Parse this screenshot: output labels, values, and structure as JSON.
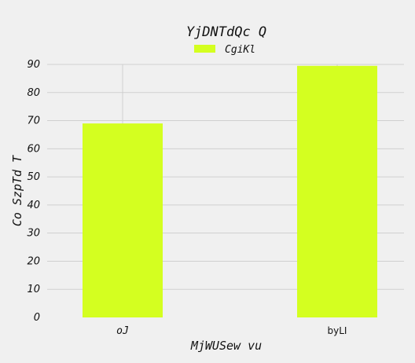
{
  "chart_data": {
    "type": "bar",
    "title": "YjDNTdQc Q",
    "xlabel": "MjWUSew vu",
    "ylabel": "Co SzpTd T",
    "categories": [
      "oJ",
      "byLI"
    ],
    "series": [
      {
        "name": "CgiKl",
        "values": [
          69,
          89.5
        ]
      }
    ],
    "ylim": [
      0,
      90
    ],
    "yticks": [
      0,
      10,
      20,
      30,
      40,
      50,
      60,
      70,
      80,
      90
    ],
    "grid": true,
    "legend": "top-center",
    "colors": {
      "bar": "#d4ff20",
      "grid": "#cfcfcf",
      "background": "#f0f0f0"
    }
  }
}
